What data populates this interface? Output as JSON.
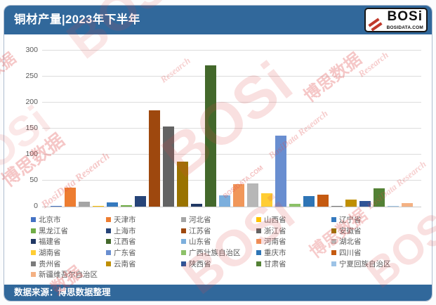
{
  "header": {
    "title": "铜材产量|2023年下半年",
    "logo": {
      "brand": "BOSi",
      "domain": "BOSIDATA.COM"
    }
  },
  "footer": {
    "source": "数据来源：博思数据整理"
  },
  "watermark": {
    "texts": [
      "BOSi",
      "博思数据",
      "BosiData Research",
      "BOSIDATA.COM",
      "数据",
      "Research"
    ]
  },
  "chart_data": {
    "type": "bar",
    "title": "铜材产量|2023年下半年",
    "categories": [
      "北京市",
      "天津市",
      "河北省",
      "山西省",
      "辽宁省",
      "黑龙江省",
      "上海市",
      "江苏省",
      "浙江省",
      "安徽省",
      "福建省",
      "江西省",
      "山东省",
      "河南省",
      "湖北省",
      "湖南省",
      "广东省",
      "广西壮族自治区",
      "重庆市",
      "四川省",
      "贵州省",
      "云南省",
      "陕西省",
      "甘肃省",
      "宁夏回族自治区",
      "新疆维吾尔自治区"
    ],
    "values": [
      1,
      37,
      10,
      1,
      8,
      3,
      20,
      185,
      154,
      87,
      5,
      272,
      21,
      43,
      44,
      25,
      137,
      5,
      20,
      23,
      2,
      14,
      11,
      35,
      1,
      7
    ],
    "colors": [
      "#4472C4",
      "#ED7D31",
      "#A5A5A5",
      "#FFC000",
      "#3579BE",
      "#70AD47",
      "#264478",
      "#9E480E",
      "#636363",
      "#997300",
      "#203864",
      "#43682B",
      "#7CAFDD",
      "#F1975A",
      "#B7B7B7",
      "#FFCD33",
      "#698ED0",
      "#8CC168",
      "#2E75B6",
      "#C55A11",
      "#7B7B7B",
      "#BF8F00",
      "#2F5597",
      "#538135",
      "#9DC3E6",
      "#F4B183"
    ],
    "xlabel": "",
    "ylabel": "",
    "ylim": [
      0,
      300
    ],
    "yticks": [
      0,
      50,
      100,
      150,
      200,
      250,
      300
    ],
    "grid": true,
    "legend_position": "bottom"
  }
}
